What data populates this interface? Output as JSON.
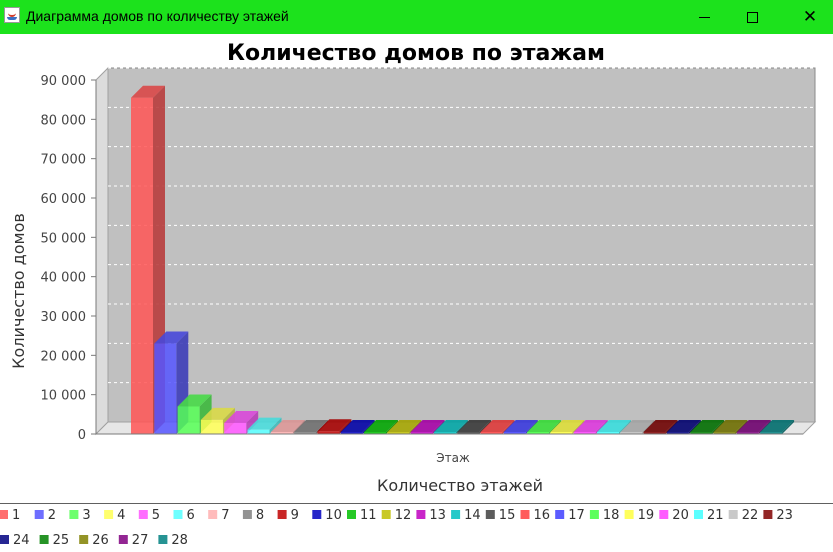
{
  "window": {
    "title": "Диаграмма домов по количеству этажей",
    "minimize_icon": "minimize-icon",
    "maximize_icon": "maximize-icon",
    "close_icon": "close-icon",
    "close_glyph": "✕",
    "app_icon": "java-coffee-cup-icon"
  },
  "chart_data": {
    "type": "bar",
    "rendering": "3d",
    "title": "Количество домов по этажам",
    "xlabel": "Количество этажей",
    "ylabel": "Количество домов",
    "categories": [
      "Этаж"
    ],
    "ylim": [
      0,
      90000
    ],
    "yticks": [
      0,
      10000,
      20000,
      30000,
      40000,
      50000,
      60000,
      70000,
      80000,
      90000
    ],
    "ytick_labels": [
      "0",
      "10 000",
      "20 000",
      "30 000",
      "40 000",
      "50 000",
      "60 000",
      "70 000",
      "80 000",
      "90 000"
    ],
    "grid": true,
    "legend_position": "bottom",
    "plot_background": "#c0c0c0",
    "series": [
      {
        "name": "1",
        "color": "#ff5555",
        "values": [
          85500
        ]
      },
      {
        "name": "2",
        "color": "#5555ff",
        "values": [
          23000
        ]
      },
      {
        "name": "3",
        "color": "#55ff55",
        "values": [
          7000
        ]
      },
      {
        "name": "4",
        "color": "#ffff55",
        "values": [
          3600
        ]
      },
      {
        "name": "5",
        "color": "#ff55ff",
        "values": [
          2800
        ]
      },
      {
        "name": "6",
        "color": "#55ffff",
        "values": [
          1100
        ]
      },
      {
        "name": "7",
        "color": "#ffafaf",
        "values": [
          300
        ]
      },
      {
        "name": "8",
        "color": "#808080",
        "values": [
          150
        ]
      },
      {
        "name": "9",
        "color": "#c00000",
        "values": [
          700
        ]
      },
      {
        "name": "10",
        "color": "#0000c0",
        "values": [
          60
        ]
      },
      {
        "name": "11",
        "color": "#00c000",
        "values": [
          40
        ]
      },
      {
        "name": "12",
        "color": "#c0c000",
        "values": [
          30
        ]
      },
      {
        "name": "13",
        "color": "#c000c0",
        "values": [
          25
        ]
      },
      {
        "name": "14",
        "color": "#00c0c0",
        "values": [
          20
        ]
      },
      {
        "name": "15",
        "color": "#404040",
        "values": [
          15
        ]
      },
      {
        "name": "16",
        "color": "#ff4040",
        "values": [
          12
        ]
      },
      {
        "name": "17",
        "color": "#4040ff",
        "values": [
          10
        ]
      },
      {
        "name": "18",
        "color": "#40ff40",
        "values": [
          9
        ]
      },
      {
        "name": "19",
        "color": "#ffff40",
        "values": [
          8
        ]
      },
      {
        "name": "20",
        "color": "#ff40ff",
        "values": [
          7
        ]
      },
      {
        "name": "21",
        "color": "#40ffff",
        "values": [
          6
        ]
      },
      {
        "name": "22",
        "color": "#c0c0c0",
        "values": [
          5
        ]
      },
      {
        "name": "23",
        "color": "#800000",
        "values": [
          5
        ]
      },
      {
        "name": "24",
        "color": "#000080",
        "values": [
          4
        ]
      },
      {
        "name": "25",
        "color": "#008000",
        "values": [
          3
        ]
      },
      {
        "name": "26",
        "color": "#808000",
        "values": [
          3
        ]
      },
      {
        "name": "27",
        "color": "#800080",
        "values": [
          2
        ]
      },
      {
        "name": "28",
        "color": "#008080",
        "values": [
          2
        ]
      }
    ]
  }
}
